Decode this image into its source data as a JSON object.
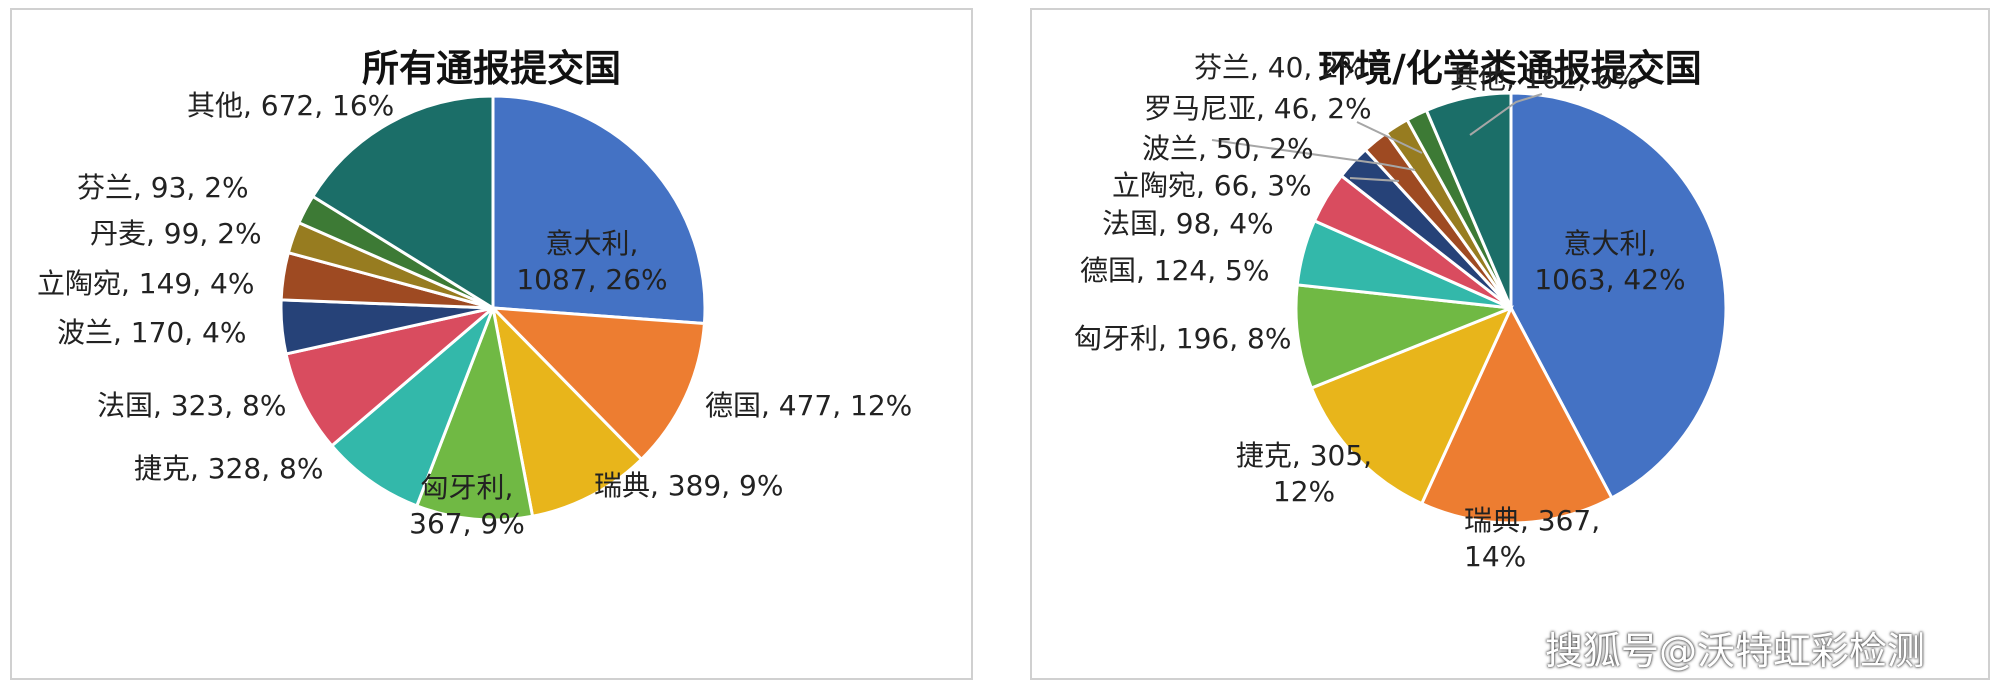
{
  "chart_data": [
    {
      "type": "pie",
      "title": "所有通报提交国",
      "categories": [
        "意大利",
        "德国",
        "瑞典",
        "匈牙利",
        "捷克",
        "法国",
        "波兰",
        "立陶宛",
        "丹麦",
        "芬兰",
        "其他"
      ],
      "values": [
        1087,
        477,
        389,
        367,
        328,
        323,
        170,
        149,
        99,
        93,
        672
      ],
      "percents": [
        "26%",
        "12%",
        "9%",
        "9%",
        "8%",
        "8%",
        "4%",
        "4%",
        "2%",
        "2%",
        "16%"
      ],
      "data_labels": [
        [
          "意大利,",
          "1087, 26%"
        ],
        [
          "德国, 477, 12%"
        ],
        [
          "瑞典, 389, 9%"
        ],
        [
          "匈牙利,",
          "367, 9%"
        ],
        [
          "捷克, 328, 8%"
        ],
        [
          "法国, 323, 8%"
        ],
        [
          "波兰, 170, 4%"
        ],
        [
          "立陶宛, 149, 4%"
        ],
        [
          "丹麦, 99, 2%"
        ],
        [
          "芬兰, 93, 2%"
        ],
        [
          "其他, 672, 16%"
        ]
      ],
      "colors": [
        "#4472c4",
        "#ed7d31",
        "#e8b51b",
        "#70b944",
        "#33b8aa",
        "#d94c5f",
        "#264278",
        "#9e4a22",
        "#977c20",
        "#3d7a35",
        "#1b6e68"
      ],
      "legend": "none"
    },
    {
      "type": "pie",
      "title": "环境/化学类通报提交国",
      "categories": [
        "意大利",
        "瑞典",
        "捷克",
        "匈牙利",
        "德国",
        "法国",
        "立陶宛",
        "波兰",
        "罗马尼亚",
        "芬兰",
        "其他"
      ],
      "values": [
        1063,
        367,
        305,
        196,
        124,
        98,
        66,
        50,
        46,
        40,
        162
      ],
      "percents": [
        "42%",
        "14%",
        "12%",
        "8%",
        "5%",
        "4%",
        "3%",
        "2%",
        "2%",
        "2%",
        "6%"
      ],
      "data_labels": [
        [
          "意大利,",
          "1063, 42%"
        ],
        [
          "瑞典, 367,",
          "14%"
        ],
        [
          "捷克, 305,",
          "12%"
        ],
        [
          "匈牙利, 196, 8%"
        ],
        [
          "德国, 124, 5%"
        ],
        [
          "法国, 98, 4%"
        ],
        [
          "立陶宛, 66, 3%"
        ],
        [
          "波兰, 50, 2%"
        ],
        [
          "罗马尼亚, 46, 2%"
        ],
        [
          "芬兰, 40, 2%"
        ],
        [
          "其他, 162, 6%"
        ]
      ],
      "colors": [
        "#4472c4",
        "#ed7d31",
        "#e8b51b",
        "#70b944",
        "#33b8aa",
        "#d94c5f",
        "#264278",
        "#9e4a22",
        "#977c20",
        "#3d7a35",
        "#1b6e68"
      ],
      "legend": "none"
    }
  ],
  "watermark": "搜狐号@沃特虹彩检测"
}
